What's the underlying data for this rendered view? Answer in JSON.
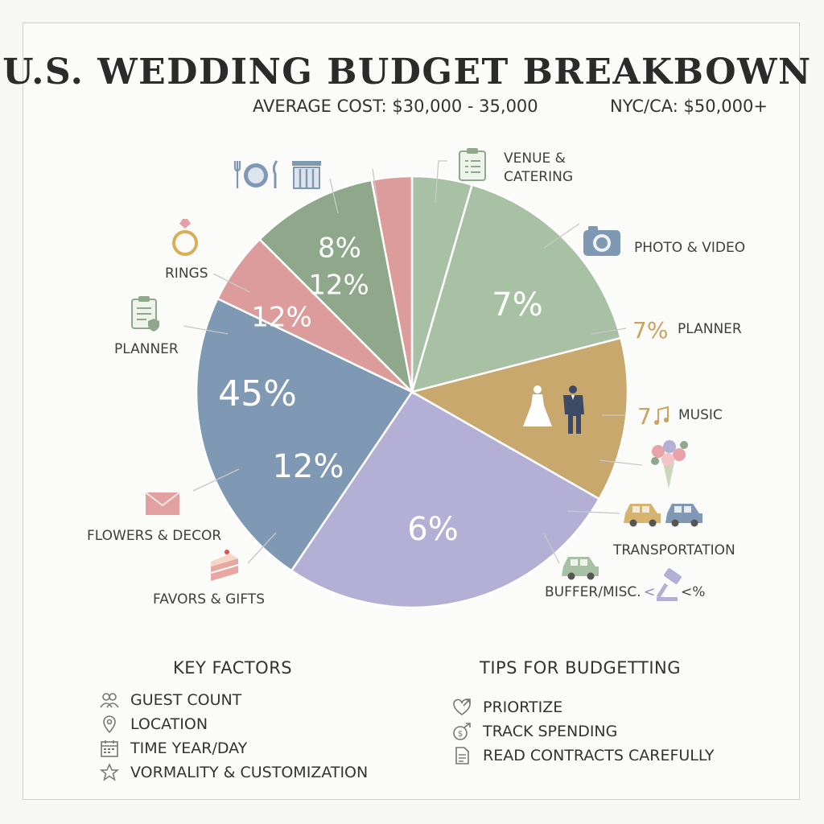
{
  "title": "U.S. WEDDING BUDGET BREAKBOWN",
  "subtitle_avg": "AVERAGE COST: $30,000 - 35,000",
  "subtitle_nyc": "NYC/CA: $50,000+",
  "chart_data": {
    "type": "pie",
    "title": "U.S. WEDDING BUDGET BREAKBOWN",
    "slices": [
      {
        "id": "s1",
        "value": 4.5,
        "color": "#a8c0a3",
        "pct_labels": []
      },
      {
        "id": "s2",
        "value": 16.5,
        "color": "#a8c0a3",
        "pct_labels": [
          "7%"
        ]
      },
      {
        "id": "s3",
        "value": 12.3,
        "color": "#c8a86c",
        "pct_labels": []
      },
      {
        "id": "s4",
        "value": 26.2,
        "color": "#b4b0d5",
        "pct_labels": [
          "6%"
        ]
      },
      {
        "id": "s5",
        "value": 22.7,
        "color": "#7f98b3",
        "pct_labels": [
          "45%",
          "12%"
        ]
      },
      {
        "id": "s6",
        "value": 5.4,
        "color": "#dc9c9c",
        "pct_labels": [
          "12%"
        ]
      },
      {
        "id": "s7",
        "value": 9.5,
        "color": "#8fa88b",
        "pct_labels": [
          "8%",
          "12%"
        ]
      },
      {
        "id": "s8",
        "value": 3.0,
        "color": "#dc9c9c",
        "pct_labels": []
      }
    ],
    "category_labels": {
      "venue_catering": "VENUE & CATERING",
      "photo_video": "PHOTO & VIDEO",
      "planner_right": "PLANNER",
      "music": "MUSIC",
      "transportation": "TRANSPORTATION",
      "buffer_misc": "BUFFER/MISC.",
      "rings": "RINGS",
      "planner_left": "PLANNER",
      "flowers_decor": "FLOWERS & DECOR",
      "favors_gifts": "FAVORS & GIFTS"
    },
    "side_values": {
      "planner_pct": "7%",
      "music_pct": "7",
      "buffer_lt": "<",
      "buffer_pct": "<%"
    },
    "colors": {
      "sage": "#a8c0a3",
      "green": "#8fa88b",
      "gold": "#c8a86c",
      "lavender": "#b4b0d5",
      "blue": "#7f98b3",
      "pink": "#dc9c9c"
    }
  },
  "key_factors": {
    "heading": "KEY FACTORS",
    "items": [
      {
        "label": "GUEST COUNT",
        "icon": "people-icon"
      },
      {
        "label": "LOCATION",
        "icon": "location-pin-icon"
      },
      {
        "label": "TIME YEAR/DAY",
        "icon": "calendar-icon"
      },
      {
        "label": "VORMALITY & CUSTOMIZATION",
        "icon": "star-icon"
      }
    ]
  },
  "tips": {
    "heading": "TIPS FOR BUDGETTING",
    "items": [
      {
        "label": "PRIORTIZE",
        "icon": "heart-arrow-icon"
      },
      {
        "label": "TRACK SPENDING",
        "icon": "coin-arrow-icon"
      },
      {
        "label": "READ CONTRACTS CAREFULLY",
        "icon": "document-icon"
      }
    ]
  }
}
